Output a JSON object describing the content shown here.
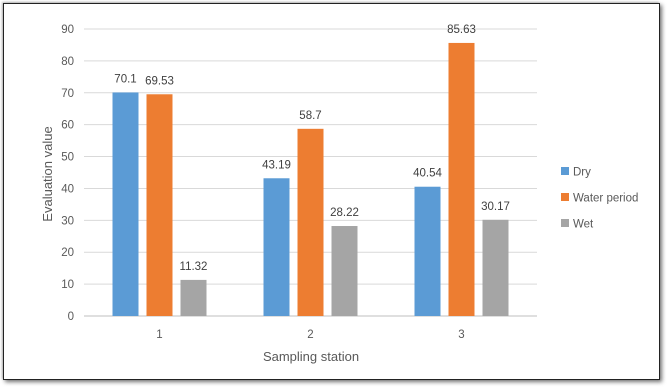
{
  "chart_data": {
    "type": "bar",
    "title": "",
    "xlabel": "Sampling station",
    "ylabel": "Evaluation  value",
    "categories": [
      "1",
      "2",
      "3"
    ],
    "ylim": [
      0,
      90
    ],
    "yticks": [
      0,
      10,
      20,
      30,
      40,
      50,
      60,
      70,
      80,
      90
    ],
    "grid": true,
    "legend_position": "right",
    "series": [
      {
        "name": "Dry",
        "color": "#5B9BD5",
        "values": [
          70.1,
          43.19,
          40.54
        ],
        "labels": [
          "70.1",
          "43.19",
          "40.54"
        ]
      },
      {
        "name": "Water period",
        "color": "#ED7D31",
        "values": [
          69.53,
          58.7,
          85.63
        ],
        "labels": [
          "69.53",
          "58.7",
          "85.63"
        ]
      },
      {
        "name": "Wet",
        "color": "#A5A5A5",
        "values": [
          11.32,
          28.22,
          30.17
        ],
        "labels": [
          "11.32",
          "28.22",
          "30.17"
        ]
      }
    ]
  }
}
